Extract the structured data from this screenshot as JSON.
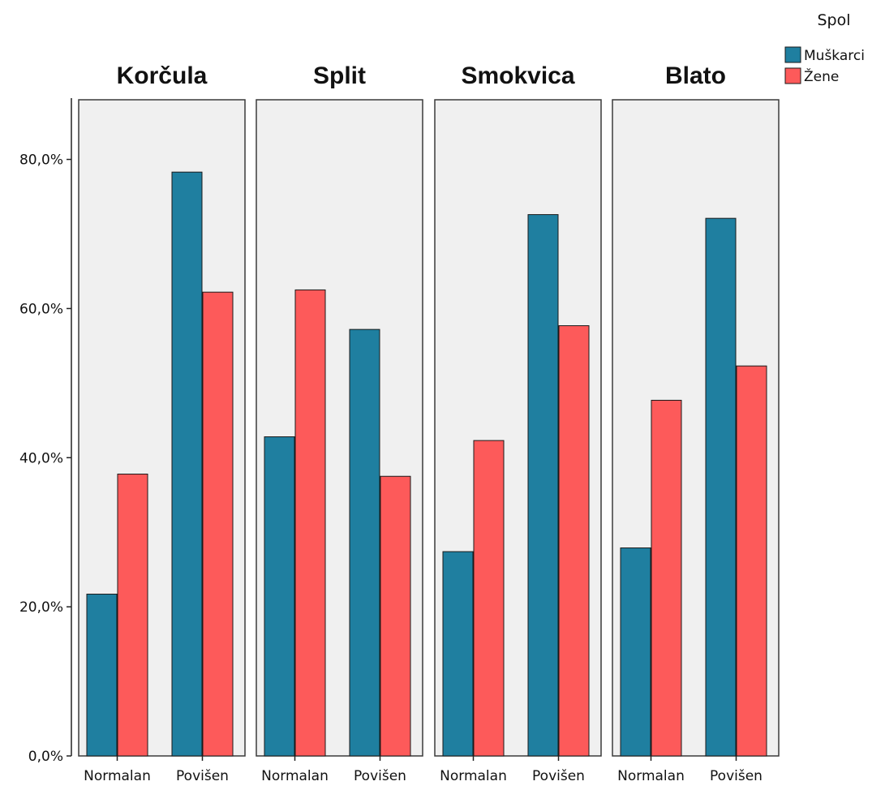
{
  "chart_data": {
    "type": "bar",
    "legend": {
      "title": "Spol",
      "placement": "top-right"
    },
    "y_ticks": [
      "0,0%",
      "20,0%",
      "40,0%",
      "60,0%",
      "80,0%"
    ],
    "ylim": [
      0,
      88
    ],
    "categories": [
      "Normalan",
      "Povišen"
    ],
    "series": [
      {
        "name": "Muškarci",
        "color": "#1f7fa0"
      },
      {
        "name": "Žene",
        "color": "#fd5a5a"
      }
    ],
    "panels": [
      {
        "title": "Korčula",
        "values": {
          "Muškarci": [
            21.7,
            78.3
          ],
          "Žene": [
            37.8,
            62.2
          ]
        }
      },
      {
        "title": "Split",
        "values": {
          "Muškarci": [
            42.8,
            57.2
          ],
          "Žene": [
            62.5,
            37.5
          ]
        }
      },
      {
        "title": "Smokvica",
        "values": {
          "Muškarci": [
            27.4,
            72.6
          ],
          "Žene": [
            42.3,
            57.7
          ]
        }
      },
      {
        "title": "Blato",
        "values": {
          "Muškarci": [
            27.9,
            72.1
          ],
          "Žene": [
            47.7,
            52.3
          ]
        }
      }
    ],
    "grid": false
  }
}
